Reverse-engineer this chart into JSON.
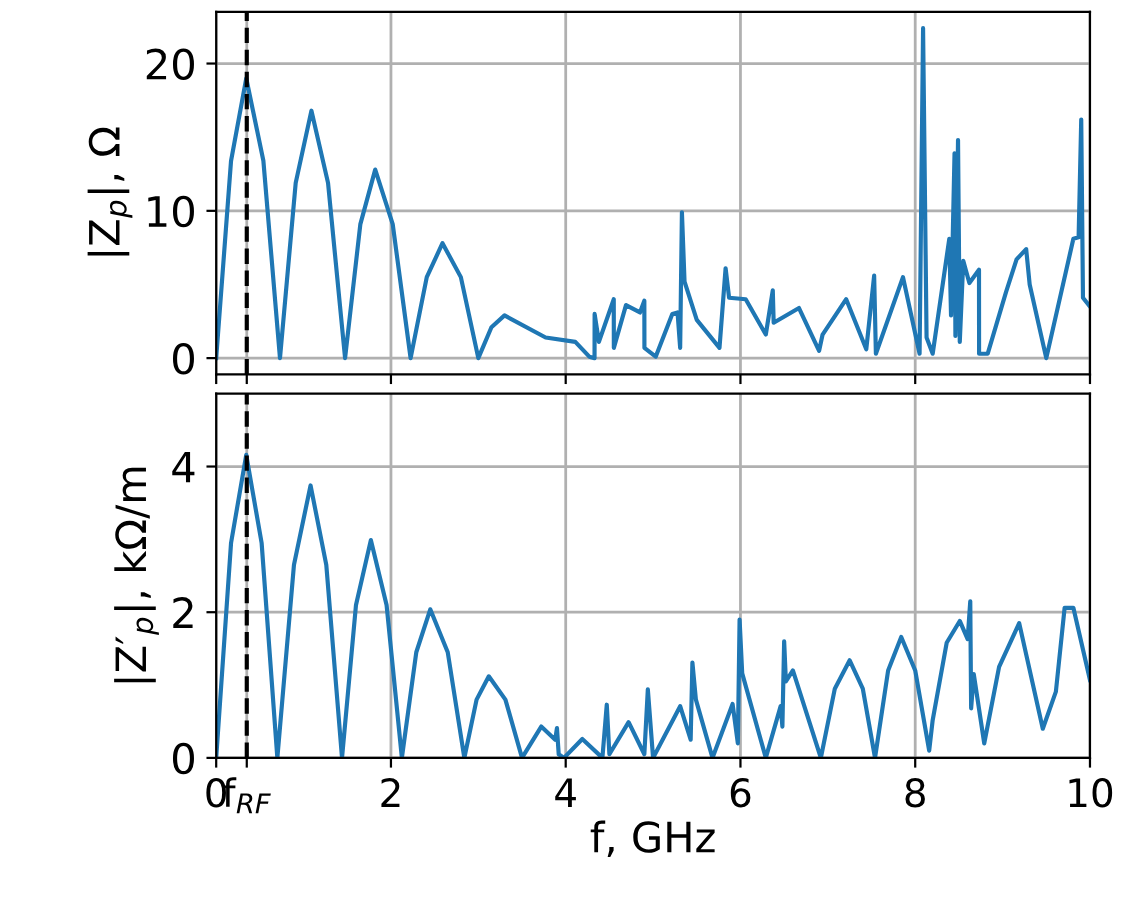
{
  "chart_data": [
    {
      "type": "line",
      "ylabel": "|Z$_{p}$|, Ω",
      "xlim": [
        0,
        10
      ],
      "ylim": [
        -1.1,
        23.5
      ],
      "xticks": [
        0,
        {
          "value": 0.35,
          "label": null
        },
        2,
        4,
        6,
        8,
        10
      ],
      "yticks": [
        0,
        10,
        20
      ],
      "grid": true,
      "tick_labels": "y",
      "ref_lines": [
        {
          "axis": "x",
          "value": 0.35,
          "label": null,
          "color": "#000000",
          "line_style": "dashed"
        }
      ],
      "series": [
        {
          "color": "#1f77b4",
          "x": [
            0,
            0.17,
            0.344,
            0.54,
            0.73,
            0.91,
            1.09,
            1.28,
            1.475,
            1.65,
            1.82,
            2.02,
            2.225,
            2.41,
            2.59,
            2.8,
            3.0,
            3.15,
            3.3,
            3.77,
            4.11,
            4.27,
            4.33,
            4.331,
            4.38,
            4.55,
            4.551,
            4.69,
            4.85,
            4.9,
            4.901,
            5.03,
            5.22,
            5.28,
            5.31,
            5.33,
            5.36,
            5.5,
            5.76,
            5.83,
            5.87,
            6.06,
            6.29,
            6.37,
            6.38,
            6.67,
            6.9,
            6.94,
            7.21,
            7.44,
            7.53,
            7.55,
            7.86,
            8.05,
            8.09,
            8.13,
            8.2,
            8.39,
            8.41,
            8.45,
            8.46,
            8.49,
            8.51,
            8.55,
            8.62,
            8.73,
            8.731,
            8.83,
            9.04,
            9.16,
            9.27,
            9.31,
            9.5,
            9.81,
            9.87,
            9.9,
            9.92,
            10.0
          ],
          "values": [
            0,
            13.4,
            19.0,
            13.4,
            0,
            11.9,
            16.8,
            11.9,
            0,
            9.1,
            12.8,
            9.1,
            0,
            5.5,
            7.8,
            5.5,
            0,
            2.1,
            2.9,
            1.4,
            1.1,
            0.1,
            0,
            3.0,
            1.1,
            4.0,
            0.7,
            3.6,
            3.1,
            3.9,
            0.7,
            0.1,
            3.0,
            3.1,
            0.7,
            9.9,
            5.2,
            2.6,
            0.7,
            6.1,
            4.1,
            4.0,
            1.6,
            4.6,
            2.4,
            3.4,
            0.5,
            1.6,
            4.0,
            0.6,
            5.6,
            0.3,
            5.5,
            0.3,
            22.4,
            1.4,
            0.3,
            8.1,
            2.9,
            13.9,
            1.5,
            14.8,
            1.1,
            6.6,
            5.1,
            6.0,
            0.3,
            0.3,
            4.5,
            6.7,
            7.4,
            5.0,
            0,
            8.1,
            8.2,
            16.2,
            4.1,
            3.5
          ]
        }
      ]
    },
    {
      "type": "line",
      "xlabel": "f, GHz",
      "ylabel": "|Z′$_{p}$|, kΩ/m",
      "xlim": [
        0,
        10
      ],
      "ylim": [
        0,
        5
      ],
      "xticks": [
        0,
        {
          "value": 0.35,
          "label": "f$_{RF}$"
        },
        2,
        4,
        6,
        8,
        10
      ],
      "yticks": [
        0,
        2,
        4
      ],
      "grid": true,
      "ref_lines": [
        {
          "axis": "x",
          "value": 0.35,
          "label": null,
          "color": "#000000",
          "line_style": "dashed"
        }
      ],
      "series": [
        {
          "color": "#1f77b4",
          "x": [
            0,
            0.17,
            0.344,
            0.52,
            0.7,
            0.89,
            1.08,
            1.26,
            1.44,
            1.6,
            1.77,
            1.95,
            2.125,
            2.29,
            2.45,
            2.65,
            2.84,
            2.98,
            3.12,
            3.31,
            3.5,
            3.72,
            3.88,
            3.9,
            3.92,
            3.98,
            4.19,
            4.42,
            4.47,
            4.5,
            4.72,
            4.9,
            4.94,
            5.0,
            5.31,
            5.43,
            5.45,
            5.49,
            5.68,
            5.91,
            5.97,
            5.99,
            6.02,
            6.29,
            6.46,
            6.48,
            6.5,
            6.52,
            6.6,
            6.92,
            7.08,
            7.25,
            7.4,
            7.54,
            7.69,
            7.84,
            8.0,
            8.16,
            8.2,
            8.36,
            8.51,
            8.6,
            8.63,
            8.64,
            8.67,
            8.79,
            8.96,
            9.19,
            9.46,
            9.61,
            9.71,
            9.81,
            10.0
          ],
          "values": [
            0,
            2.95,
            4.16,
            2.95,
            0,
            2.65,
            3.74,
            2.65,
            0,
            2.1,
            2.99,
            2.1,
            0,
            1.45,
            2.04,
            1.45,
            0,
            0.8,
            1.12,
            0.8,
            0,
            0.43,
            0.25,
            0.41,
            0.05,
            0,
            0.26,
            0,
            0.73,
            0.05,
            0.49,
            0.05,
            0.94,
            0,
            0.71,
            0.25,
            1.31,
            0.8,
            0,
            0.74,
            0.2,
            1.9,
            1.16,
            0,
            0.71,
            0.43,
            1.6,
            1.05,
            1.2,
            0,
            0.95,
            1.34,
            0.95,
            0,
            1.2,
            1.66,
            1.2,
            0.1,
            0.52,
            1.58,
            1.88,
            1.63,
            2.15,
            0.68,
            1.15,
            0.2,
            1.25,
            1.85,
            0.4,
            0.91,
            2.06,
            2.06,
            1.07
          ]
        }
      ]
    }
  ]
}
